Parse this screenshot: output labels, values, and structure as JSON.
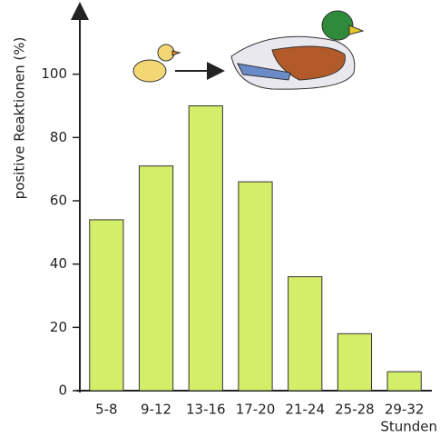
{
  "chart_data": {
    "type": "bar",
    "y_label": "positive Reaktionen (%)",
    "x_label": "Stunden",
    "categories": [
      "5-8",
      "9-12",
      "13-16",
      "17-20",
      "21-24",
      "25-28",
      "29-32"
    ],
    "values": [
      54,
      71,
      90,
      66,
      36,
      18,
      6
    ],
    "color": "#d4ee6a",
    "ylim": [
      0,
      120
    ],
    "yticks": [
      0,
      20,
      40,
      60,
      80,
      100
    ]
  }
}
